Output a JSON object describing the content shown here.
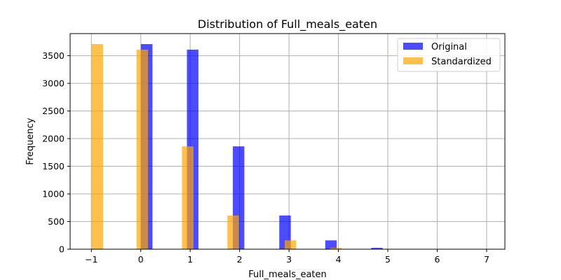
{
  "chart_data": {
    "type": "bar",
    "title": "Distribution of Full_meals_eaten",
    "xlabel": "Full_meals_eaten",
    "ylabel": "Frequency",
    "xlim": [
      -1.43,
      7.37
    ],
    "ylim": [
      0,
      3900
    ],
    "xticks": [
      -1,
      0,
      1,
      2,
      3,
      4,
      5,
      6,
      7
    ],
    "xtick_labels": [
      "−1",
      "0",
      "1",
      "2",
      "3",
      "4",
      "5",
      "6",
      "7"
    ],
    "yticks": [
      0,
      500,
      1000,
      1500,
      2000,
      2500,
      3000,
      3500
    ],
    "grid": true,
    "legend_position": "top-right",
    "series": [
      {
        "name": "Original",
        "color": "#0000ff",
        "opacity": 0.7,
        "bar_width": 0.233,
        "bars": [
          {
            "x": 0.12,
            "value": 3710
          },
          {
            "x": 1.05,
            "value": 3610
          },
          {
            "x": 1.98,
            "value": 1860
          },
          {
            "x": 2.92,
            "value": 610
          },
          {
            "x": 3.85,
            "value": 160
          },
          {
            "x": 4.78,
            "value": 25
          },
          {
            "x": 5.72,
            "value": 5
          },
          {
            "x": 6.65,
            "value": 2
          }
        ]
      },
      {
        "name": "Standardized",
        "color": "#ffa500",
        "opacity": 0.7,
        "bar_width": 0.233,
        "bars": [
          {
            "x": -0.88,
            "value": 3710
          },
          {
            "x": 0.03,
            "value": 3610
          },
          {
            "x": 0.95,
            "value": 1860
          },
          {
            "x": 1.87,
            "value": 610
          },
          {
            "x": 3.03,
            "value": 160
          },
          {
            "x": 3.95,
            "value": 25
          },
          {
            "x": 4.87,
            "value": 5
          },
          {
            "x": 5.8,
            "value": 2
          }
        ]
      }
    ]
  }
}
